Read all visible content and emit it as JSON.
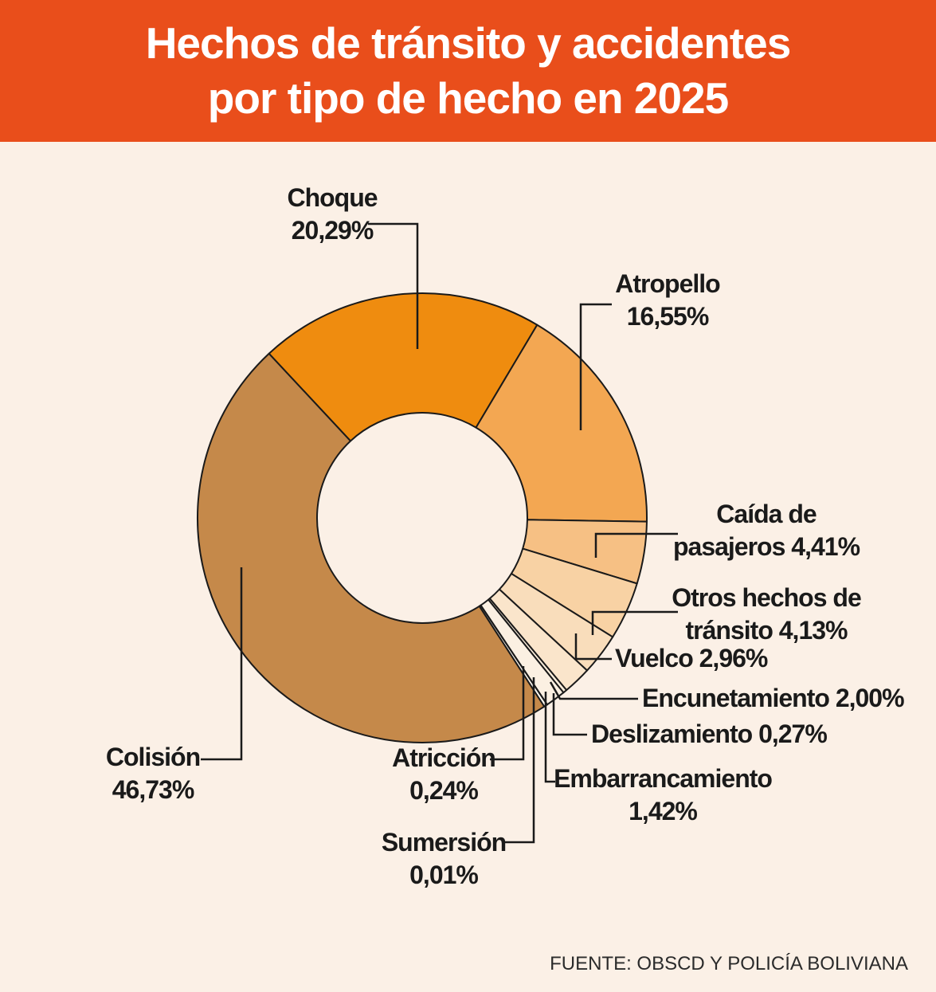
{
  "header": {
    "title_lines": [
      "Hechos de tránsito y accidentes",
      "por tipo de hecho en 2025"
    ],
    "bg_color": "#E94E1B",
    "text_color": "#FFFFFF"
  },
  "footer": {
    "source": "FUENTE: OBSCD Y POLICÍA BOLIVIANA"
  },
  "chart_data": {
    "type": "pie",
    "subtype": "donut",
    "title": "Hechos de tránsito y accidentes por tipo de hecho en 2025",
    "unit": "%",
    "decimal_separator": ",",
    "legend_position": "none",
    "labels_style": "outside-with-leader-lines",
    "background_color": "#FBF0E6",
    "outline_color": "#1A1A1A",
    "slices": [
      {
        "key": "choque",
        "label": "Choque",
        "value": 20.29,
        "display": "20,29%",
        "color": "#EF8C0F",
        "label_lines": [
          "Choque",
          "20,29%"
        ]
      },
      {
        "key": "atropello",
        "label": "Atropello",
        "value": 16.55,
        "display": "16,55%",
        "color": "#F3A752",
        "label_lines": [
          "Atropello",
          "16,55%"
        ]
      },
      {
        "key": "caida",
        "label": "Caída de pasajeros",
        "value": 4.41,
        "display": "4,41%",
        "color": "#F6C084",
        "label_lines": [
          "Caída de",
          "pasajeros 4,41%"
        ]
      },
      {
        "key": "otros",
        "label": "Otros hechos de tránsito",
        "value": 4.13,
        "display": "4,13%",
        "color": "#F8D2A4",
        "label_lines": [
          "Otros hechos de",
          "tránsito 4,13%"
        ]
      },
      {
        "key": "vuelco",
        "label": "Vuelco",
        "value": 2.96,
        "display": "2,96%",
        "color": "#F9DDBB",
        "label_lines": [
          "Vuelco 2,96%"
        ]
      },
      {
        "key": "encunetamiento",
        "label": "Encunetamiento",
        "value": 2.0,
        "display": "2,00%",
        "color": "#FAE5CB",
        "label_lines": [
          "Encunetamiento 2,00%"
        ]
      },
      {
        "key": "deslizamiento",
        "label": "Deslizamiento",
        "value": 0.27,
        "display": "0,27%",
        "color": "#FCEEDC",
        "label_lines": [
          "Deslizamiento 0,27%"
        ]
      },
      {
        "key": "embarrancamiento",
        "label": "Embarrancamiento",
        "value": 1.42,
        "display": "1,42%",
        "color": "#FBF0E2",
        "label_lines": [
          "Embarrancamiento",
          "1,42%"
        ]
      },
      {
        "key": "sumersion",
        "label": "Sumersión",
        "value": 0.01,
        "display": "0,01%",
        "color": "#FDF5EA",
        "label_lines": [
          "Sumersión",
          "0,01%"
        ]
      },
      {
        "key": "atriccion",
        "label": "Atricción",
        "value": 0.24,
        "display": "0,24%",
        "color": "#FDF8F0",
        "label_lines": [
          "Atricción",
          "0,24%"
        ]
      },
      {
        "key": "colision",
        "label": "Colisión",
        "value": 46.73,
        "display": "46,73%",
        "color": "#C5894A",
        "label_lines": [
          "Colisión",
          "46,73%"
        ]
      }
    ]
  }
}
